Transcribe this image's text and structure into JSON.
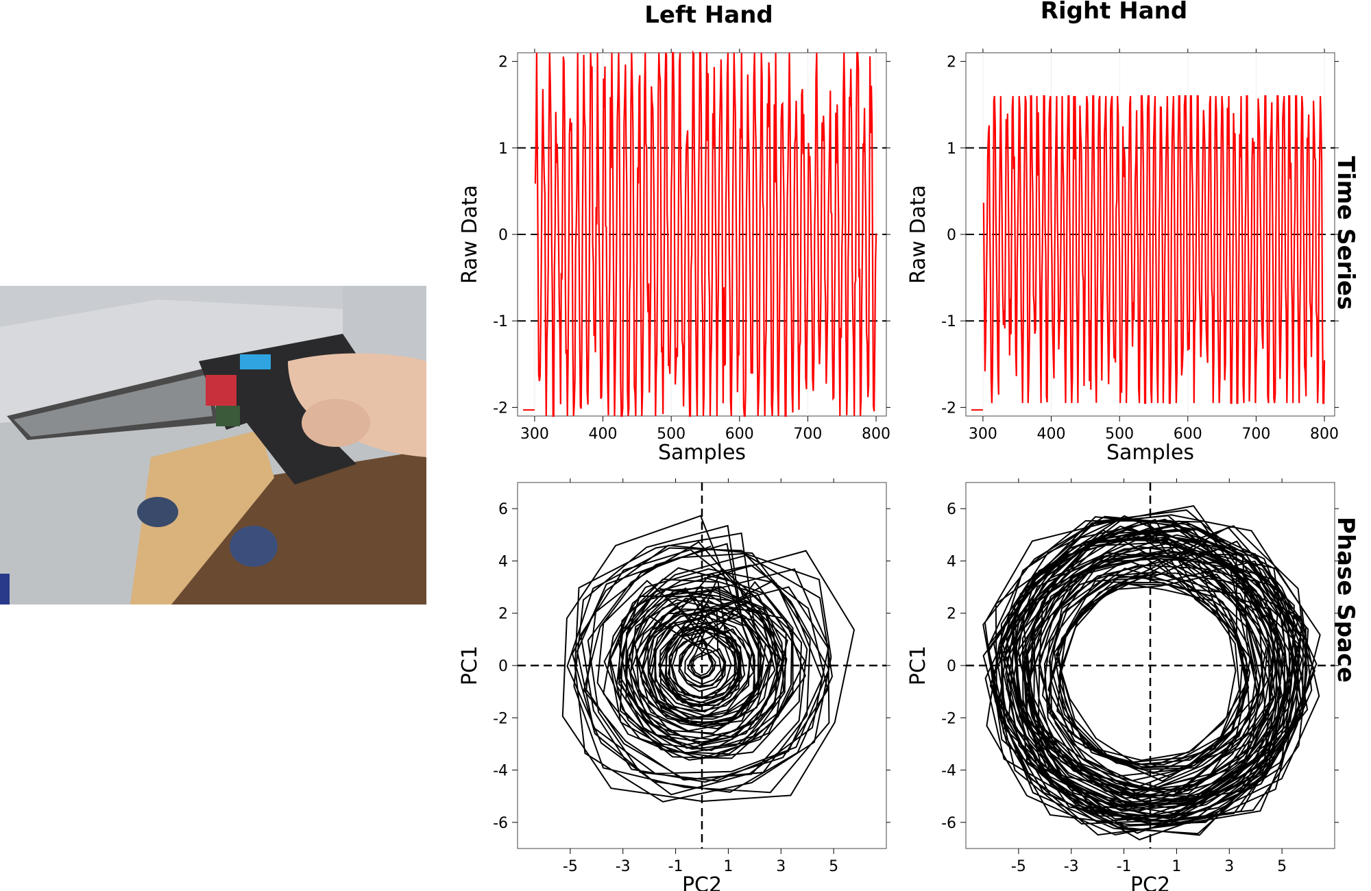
{
  "column_titles": [
    "Left Hand",
    "Right Hand"
  ],
  "row_titles": [
    "Time Series",
    "Phase Space"
  ],
  "colors": {
    "time_series": "#ff0000",
    "phase_space": "#000000",
    "reference_line": "#000000"
  },
  "chart_data": [
    {
      "type": "line",
      "panel": "Left Hand / Time Series",
      "xlabel": "Samples",
      "ylabel": "Raw Data",
      "xlim": [
        275,
        815
      ],
      "ylim": [
        -2.1,
        2.1
      ],
      "xticks": [
        300,
        400,
        500,
        600,
        700,
        800
      ],
      "yticks": [
        -2,
        -1,
        0,
        1,
        2
      ],
      "hlines": [
        -1,
        0,
        1
      ],
      "grid": true,
      "series": [
        {
          "seed": 11,
          "x_start": 301,
          "x_end": 800,
          "amplitude": 1.85,
          "clip": [
            -2.1,
            2.1
          ],
          "period": 10,
          "noise": 0.55
        }
      ]
    },
    {
      "type": "line",
      "panel": "Right Hand / Time Series",
      "xlabel": "Samples",
      "ylabel": "Raw Data",
      "xlim": [
        275,
        815
      ],
      "ylim": [
        -2.1,
        2.1
      ],
      "xticks": [
        300,
        400,
        500,
        600,
        700,
        800
      ],
      "yticks": [
        -2,
        -1,
        0,
        1,
        2
      ],
      "hlines": [
        -1,
        0,
        1
      ],
      "grid": true,
      "series": [
        {
          "seed": 23,
          "x_start": 301,
          "x_end": 800,
          "amplitude": 1.75,
          "clip": [
            -1.95,
            1.6
          ],
          "period": 9,
          "noise": 0.35
        }
      ]
    },
    {
      "type": "line",
      "panel": "Left Hand / Phase Space",
      "xlabel": "PC2",
      "ylabel": "PC1",
      "xlim": [
        -7,
        7
      ],
      "ylim": [
        -7,
        7
      ],
      "xticks": [
        -5,
        -3,
        -1,
        1,
        3,
        5
      ],
      "yticks": [
        -6,
        -4,
        -2,
        0,
        2,
        4,
        6
      ],
      "crosshair": [
        0,
        0
      ],
      "series": [
        {
          "seed": 5,
          "radius_mean": 3.2,
          "radius_min": 0.2,
          "radius_max": 5.6,
          "step_deg": 36,
          "turns": 60,
          "center": [
            0,
            0
          ]
        }
      ]
    },
    {
      "type": "line",
      "panel": "Right Hand / Phase Space",
      "xlabel": "PC2",
      "ylabel": "PC1",
      "xlim": [
        -7,
        7
      ],
      "ylim": [
        -7,
        7
      ],
      "xticks": [
        -5,
        -3,
        -1,
        1,
        3,
        5
      ],
      "yticks": [
        -6,
        -4,
        -2,
        0,
        2,
        4,
        6
      ],
      "crosshair": [
        0,
        0
      ],
      "series": [
        {
          "seed": 9,
          "radius_mean": 4.8,
          "radius_min": 3.0,
          "radius_max": 6.3,
          "step_deg": 30,
          "turns": 65,
          "center": [
            0,
            -0.3
          ]
        }
      ]
    }
  ]
}
